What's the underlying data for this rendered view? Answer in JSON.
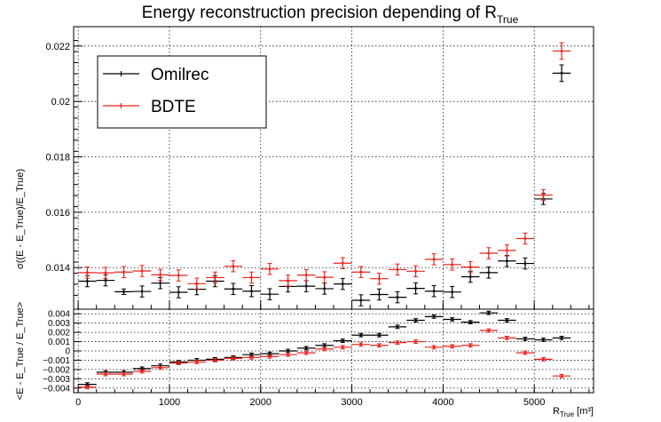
{
  "chart_data": [
    {
      "type": "scatter",
      "title": "Energy reconstruction precision depending of R",
      "title_sub": "True",
      "ylabel": "σ((E - E_True)/E_True)",
      "ylim": [
        0.0125,
        0.0227
      ],
      "yticks": [
        0.014,
        0.016,
        0.018,
        0.02,
        0.022
      ],
      "ytick_labels": [
        "0.014",
        "0.016",
        "0.018",
        "0.02",
        "0.022"
      ],
      "xlim": [
        -50,
        5650
      ],
      "legend": {
        "placement": "top-left"
      },
      "series": [
        {
          "name": "Omilrec",
          "color": "#000000",
          "x": [
            100,
            300,
            500,
            700,
            900,
            1100,
            1300,
            1500,
            1700,
            1900,
            2100,
            2300,
            2500,
            2700,
            2900,
            3100,
            3300,
            3500,
            3700,
            3900,
            4100,
            4300,
            4500,
            4700,
            4900,
            5100,
            5300
          ],
          "xerr": 100,
          "y": [
            0.01351,
            0.01354,
            0.01313,
            0.01314,
            0.01344,
            0.01311,
            0.01322,
            0.01351,
            0.01323,
            0.01315,
            0.01304,
            0.01332,
            0.01333,
            0.01324,
            0.01341,
            0.01282,
            0.01303,
            0.01293,
            0.01325,
            0.01315,
            0.01312,
            0.01367,
            0.01382,
            0.01424,
            0.01415,
            0.01648,
            0.02102
          ],
          "yerr": [
            0.0002,
            0.0002,
            0.0001,
            0.0002,
            0.0002,
            0.0002,
            0.0002,
            0.0002,
            0.0002,
            0.0002,
            0.0002,
            0.0002,
            0.0002,
            0.0002,
            0.0002,
            0.0002,
            0.0002,
            0.0002,
            0.0002,
            0.0002,
            0.0002,
            0.0002,
            0.0002,
            0.0002,
            0.0002,
            0.0002,
            0.0003
          ]
        },
        {
          "name": "BDTE",
          "color": "#e8221b",
          "x": [
            100,
            300,
            500,
            700,
            900,
            1100,
            1300,
            1500,
            1700,
            1900,
            2100,
            2300,
            2500,
            2700,
            2900,
            3100,
            3300,
            3500,
            3700,
            3900,
            4100,
            4300,
            4500,
            4700,
            4900,
            5100,
            5300
          ],
          "xerr": 100,
          "y": [
            0.01382,
            0.01381,
            0.01384,
            0.01388,
            0.01374,
            0.01372,
            0.01342,
            0.01364,
            0.01405,
            0.01364,
            0.01395,
            0.01353,
            0.01373,
            0.01365,
            0.01416,
            0.01384,
            0.0136,
            0.01393,
            0.01387,
            0.0143,
            0.01411,
            0.01402,
            0.01452,
            0.01462,
            0.01505,
            0.01662,
            0.02182
          ],
          "yerr": [
            0.0002,
            0.0002,
            0.0002,
            0.0002,
            0.0002,
            0.0002,
            0.0002,
            0.0002,
            0.0002,
            0.0002,
            0.0002,
            0.0002,
            0.0002,
            0.0002,
            0.0002,
            0.0002,
            0.0002,
            0.0002,
            0.0002,
            0.0002,
            0.0002,
            0.0002,
            0.0002,
            0.0002,
            0.0002,
            0.0002,
            0.0003
          ]
        }
      ]
    },
    {
      "type": "scatter",
      "xlabel": "R",
      "xlabel_sub": "True",
      "xlabel_unit": "[m³]",
      "ylabel": "<E - E_True / E_True>",
      "xlim": [
        -50,
        5650
      ],
      "ylim": [
        -0.0045,
        0.0045
      ],
      "xticks": [
        0,
        1000,
        2000,
        3000,
        4000,
        5000
      ],
      "xtick_labels": [
        "0",
        "1000",
        "2000",
        "3000",
        "4000",
        "5000"
      ],
      "yticks": [
        -0.004,
        -0.003,
        -0.002,
        -0.001,
        0,
        0.001,
        0.002,
        0.003,
        0.004
      ],
      "ytick_labels": [
        "−0.004",
        "−0.003",
        "−0.002",
        "−0.001",
        "0",
        "0.001",
        "0.002",
        "0.003",
        "0.004"
      ],
      "series": [
        {
          "name": "Omilrec",
          "color": "#000000",
          "x": [
            100,
            300,
            500,
            700,
            900,
            1100,
            1300,
            1500,
            1700,
            1900,
            2100,
            2300,
            2500,
            2700,
            2900,
            3100,
            3300,
            3500,
            3700,
            3900,
            4100,
            4300,
            4500,
            4700,
            4900,
            5100,
            5300
          ],
          "xerr": 100,
          "y": [
            -0.0036,
            -0.0023,
            -0.0023,
            -0.0019,
            -0.0016,
            -0.0012,
            -0.001,
            -0.0009,
            -0.0007,
            -0.0004,
            -0.0003,
            0.0,
            0.0003,
            0.0006,
            0.0011,
            0.0017,
            0.0017,
            0.0026,
            0.0033,
            0.0037,
            0.0034,
            0.0031,
            0.0041,
            0.0033,
            0.0013,
            0.0012,
            0.0014
          ],
          "yerr": 0.00018
        },
        {
          "name": "BDTE",
          "color": "#e8221b",
          "x": [
            100,
            300,
            500,
            700,
            900,
            1100,
            1300,
            1500,
            1700,
            1900,
            2100,
            2300,
            2500,
            2700,
            2900,
            3100,
            3300,
            3500,
            3700,
            3900,
            4100,
            4300,
            4500,
            4700,
            4900,
            5100,
            5300
          ],
          "xerr": 100,
          "y": [
            -0.0039,
            -0.0025,
            -0.0025,
            -0.0022,
            -0.0018,
            -0.0013,
            -0.0012,
            -0.001,
            -0.0008,
            -0.0007,
            -0.0006,
            -0.0004,
            -0.0002,
            0.0002,
            0.0004,
            0.0007,
            0.0006,
            0.0009,
            0.001,
            0.0004,
            0.0005,
            0.0006,
            0.0022,
            0.0014,
            -0.0002,
            -0.0009,
            -0.0027
          ],
          "yerr": 0.00018
        }
      ]
    }
  ]
}
